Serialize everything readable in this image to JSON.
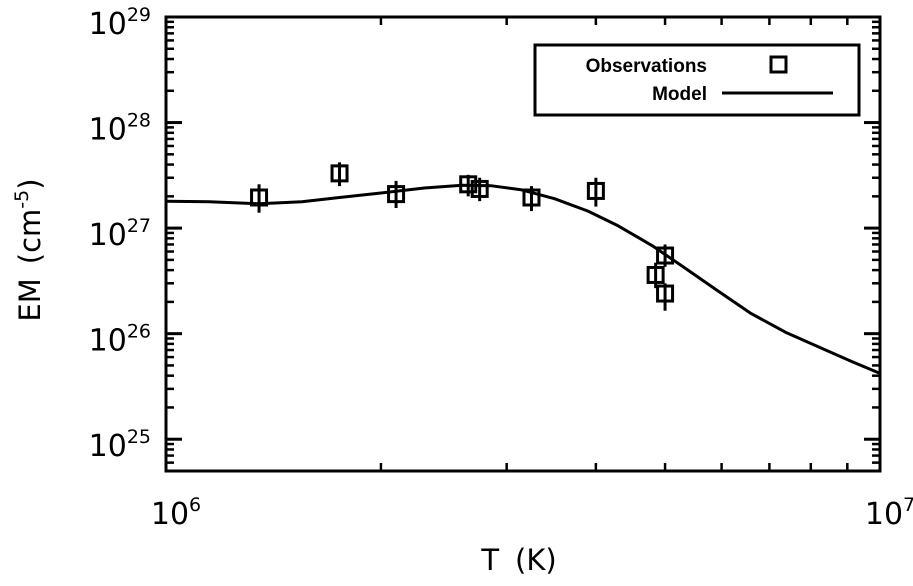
{
  "chart_data": {
    "type": "scatter",
    "xscale": "log",
    "yscale": "log",
    "xlim": [
      1000000,
      10000000
    ],
    "ylim": [
      5e+24,
      1e+29
    ],
    "xlabel_main": "T",
    "xlabel_unit": "(K)",
    "ylabel_main": "EM",
    "ylabel_unit_base": "(cm",
    "ylabel_unit_exp": "-5",
    "ylabel_unit_close": ")",
    "x_ticks": [
      {
        "base": "10",
        "exp": "6",
        "value": 1000000
      },
      {
        "base": "10",
        "exp": "7",
        "value": 10000000
      }
    ],
    "y_ticks": [
      {
        "base": "10",
        "exp": "25",
        "value": 1e+25
      },
      {
        "base": "10",
        "exp": "26",
        "value": 1e+26
      },
      {
        "base": "10",
        "exp": "27",
        "value": 1e+27
      },
      {
        "base": "10",
        "exp": "28",
        "value": 1e+28
      },
      {
        "base": "10",
        "exp": "29",
        "value": 1e+29
      }
    ],
    "legend": {
      "position": "top-right",
      "observations_label": "Observations",
      "model_label": "Model"
    },
    "series": [
      {
        "name": "Observations",
        "kind": "points",
        "marker": "square",
        "points": [
          {
            "x": 1350000,
            "y": 1.95e+27,
            "ylo": 1.4e+27,
            "yhi": 2.6e+27
          },
          {
            "x": 1750000,
            "y": 3.3e+27,
            "ylo": 2.5e+27,
            "yhi": 4.2e+27
          },
          {
            "x": 2100000,
            "y": 2.1e+27,
            "ylo": 1.55e+27,
            "yhi": 2.8e+27
          },
          {
            "x": 2650000,
            "y": 2.6e+27,
            "ylo": 2e+27,
            "yhi": 3.2e+27
          },
          {
            "x": 2750000,
            "y": 2.35e+27,
            "ylo": 1.8e+27,
            "yhi": 3e+27
          },
          {
            "x": 3250000,
            "y": 1.95e+27,
            "ylo": 1.45e+27,
            "yhi": 2.5e+27
          },
          {
            "x": 4000000,
            "y": 2.25e+27,
            "ylo": 1.6e+27,
            "yhi": 3e+27
          },
          {
            "x": 4850000,
            "y": 3.6e+26,
            "ylo": 2.7e+26,
            "yhi": 4.7e+26
          },
          {
            "x": 5000000,
            "y": 5.5e+26,
            "ylo": 4.3e+26,
            "yhi": 7e+26
          },
          {
            "x": 5000000,
            "y": 2.4e+26,
            "ylo": 1.65e+26,
            "yhi": 3e+26
          }
        ]
      },
      {
        "name": "Model",
        "kind": "line",
        "points": [
          {
            "x": 1000000,
            "y": 1.8e+27
          },
          {
            "x": 1150000,
            "y": 1.78e+27
          },
          {
            "x": 1350000,
            "y": 1.7e+27
          },
          {
            "x": 1550000,
            "y": 1.78e+27
          },
          {
            "x": 1750000,
            "y": 1.95e+27
          },
          {
            "x": 2000000,
            "y": 2.15e+27
          },
          {
            "x": 2300000,
            "y": 2.4e+27
          },
          {
            "x": 2600000,
            "y": 2.55e+27
          },
          {
            "x": 2850000,
            "y": 2.52e+27
          },
          {
            "x": 3150000,
            "y": 2.3e+27
          },
          {
            "x": 3500000,
            "y": 1.9e+27
          },
          {
            "x": 3900000,
            "y": 1.45e+27
          },
          {
            "x": 4300000,
            "y": 1.05e+27
          },
          {
            "x": 4800000,
            "y": 6.8e+26
          },
          {
            "x": 5300000,
            "y": 4.3e+26
          },
          {
            "x": 5900000,
            "y": 2.6e+26
          },
          {
            "x": 6600000,
            "y": 1.55e+26
          },
          {
            "x": 7400000,
            "y": 1.02e+26
          },
          {
            "x": 8200000,
            "y": 7.5e+25
          },
          {
            "x": 9100000,
            "y": 5.5e+25
          },
          {
            "x": 10000000,
            "y": 4.2e+25
          }
        ]
      }
    ]
  }
}
